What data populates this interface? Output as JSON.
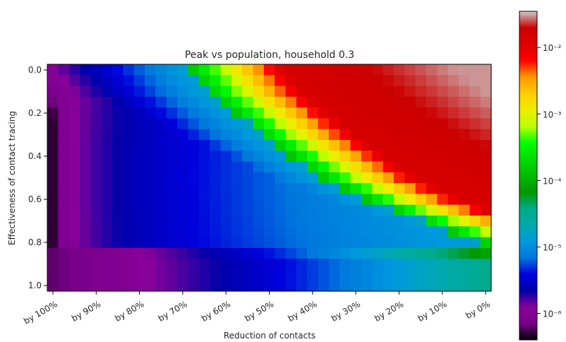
{
  "chart_data": {
    "type": "heatmap",
    "title": "Peak vs population, household 0.3",
    "xlabel": "Reduction of contacts",
    "ylabel": "Effectiveness of contact tracing",
    "x_ticklabels": [
      "by 100%",
      "by 90%",
      "by 80%",
      "by 70%",
      "by 60%",
      "by 50%",
      "by 40%",
      "by 30%",
      "by 20%",
      "by 10%",
      "by 0%"
    ],
    "y_ticklabels": [
      "0.0",
      "0.2",
      "0.4",
      "0.6",
      "0.8",
      "1.0"
    ],
    "x_values": [
      1.0,
      0.9,
      0.8,
      0.7,
      0.6,
      0.5,
      0.4,
      0.3,
      0.2,
      0.1,
      0.0
    ],
    "y_range": [
      0.0,
      1.0
    ],
    "grid_cols": 41,
    "grid_rows": 21,
    "colorbar": {
      "scale": "log",
      "colormap": "nipy_spectral",
      "range": [
        4e-07,
        0.035
      ],
      "ticklabels": [
        "10⁻⁶",
        "10⁻⁵",
        "10⁻⁴",
        "10⁻³",
        "10⁻²"
      ],
      "tick_values": [
        1e-06,
        1e-05,
        0.0001,
        0.001,
        0.01
      ]
    },
    "transition_boundary": [
      {
        "effectiveness": 0.0,
        "reduction": 0.68
      },
      {
        "effectiveness": 0.1,
        "reduction": 0.64
      },
      {
        "effectiveness": 0.2,
        "reduction": 0.58
      },
      {
        "effectiveness": 0.3,
        "reduction": 0.52
      },
      {
        "effectiveness": 0.4,
        "reduction": 0.45
      },
      {
        "effectiveness": 0.5,
        "reduction": 0.38
      },
      {
        "effectiveness": 0.6,
        "reduction": 0.28
      },
      {
        "effectiveness": 0.7,
        "reduction": 0.15
      },
      {
        "effectiveness": 0.8,
        "reduction": 0.02
      }
    ],
    "peak_max": 0.03,
    "peak_min": 5e-07
  }
}
